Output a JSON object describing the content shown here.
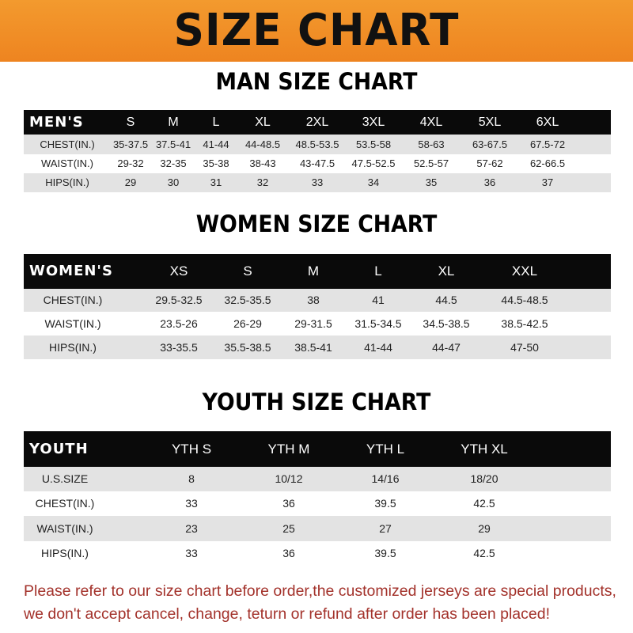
{
  "banner": {
    "title": "SIZE CHART",
    "color": "#f08a24"
  },
  "men": {
    "section_title": "MAN SIZE CHART",
    "header_label": "MEN'S",
    "sizes": [
      "S",
      "M",
      "L",
      "XL",
      "2XL",
      "3XL",
      "4XL",
      "5XL",
      "6XL"
    ],
    "rows": [
      {
        "label": "CHEST(IN.)",
        "values": [
          "35-37.5",
          "37.5-41",
          "41-44",
          "44-48.5",
          "48.5-53.5",
          "53.5-58",
          "58-63",
          "63-67.5",
          "67.5-72"
        ]
      },
      {
        "label": "WAIST(IN.)",
        "values": [
          "29-32",
          "32-35",
          "35-38",
          "38-43",
          "43-47.5",
          "47.5-52.5",
          "52.5-57",
          "57-62",
          "62-66.5"
        ]
      },
      {
        "label": "HIPS(IN.)",
        "values": [
          "29",
          "30",
          "31",
          "32",
          "33",
          "34",
          "35",
          "36",
          "37"
        ]
      }
    ]
  },
  "women": {
    "section_title": "WOMEN SIZE CHART",
    "header_label": "WOMEN'S",
    "sizes": [
      "XS",
      "S",
      "M",
      "L",
      "XL",
      "XXL"
    ],
    "rows": [
      {
        "label": "CHEST(IN.)",
        "values": [
          "29.5-32.5",
          "32.5-35.5",
          "38",
          "41",
          "44.5",
          "44.5-48.5"
        ]
      },
      {
        "label": "WAIST(IN.)",
        "values": [
          "23.5-26",
          "26-29",
          "29-31.5",
          "31.5-34.5",
          "34.5-38.5",
          "38.5-42.5"
        ]
      },
      {
        "label": "HIPS(IN.)",
        "values": [
          "33-35.5",
          "35.5-38.5",
          "38.5-41",
          "41-44",
          "44-47",
          "47-50"
        ]
      }
    ]
  },
  "youth": {
    "section_title": "YOUTH SIZE CHART",
    "header_label": "YOUTH",
    "sizes": [
      "YTH S",
      "YTH M",
      "YTH L",
      "YTH XL"
    ],
    "rows": [
      {
        "label": "U.S.SIZE",
        "values": [
          "8",
          "10/12",
          "14/16",
          "18/20"
        ]
      },
      {
        "label": "CHEST(IN.)",
        "values": [
          "33",
          "36",
          "39.5",
          "42.5"
        ]
      },
      {
        "label": "WAIST(IN.)",
        "values": [
          "23",
          "25",
          "27",
          "29"
        ]
      },
      {
        "label": "HIPS(IN.)",
        "values": [
          "33",
          "36",
          "39.5",
          "42.5"
        ]
      }
    ]
  },
  "notice": {
    "line1": "Please refer to our size chart before order,the customized jerseys are special products,",
    "line2": "we don't accept cancel, change, teturn or refund after order has been placed!",
    "color": "#a3322b"
  }
}
